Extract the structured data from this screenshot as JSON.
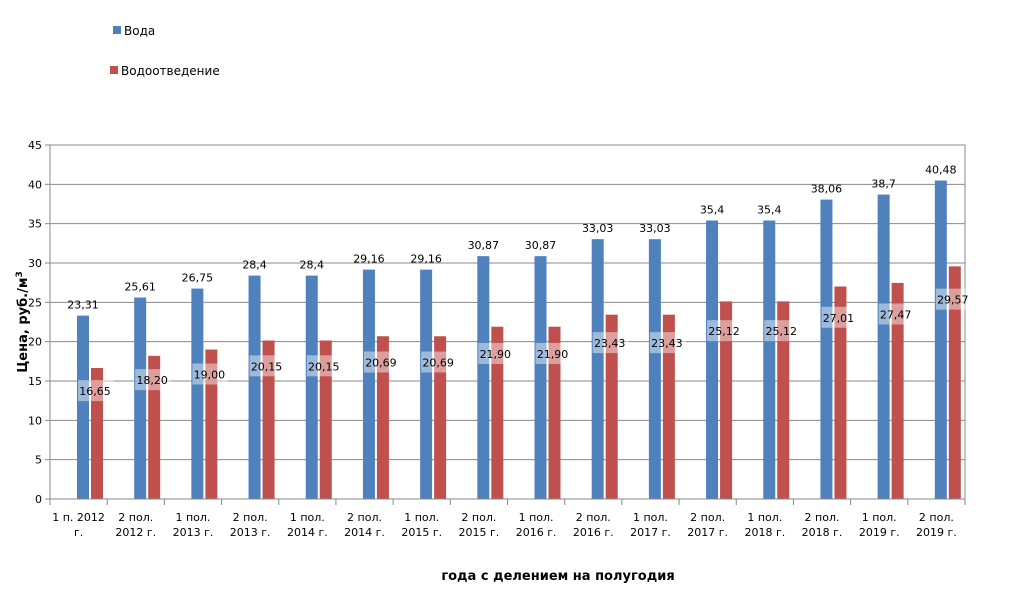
{
  "chart_data": {
    "type": "bar",
    "title": "",
    "xlabel": "года с делением на полугодия",
    "ylabel": "Цена, руб./м",
    "ylabel_superscript": "3",
    "ylim": [
      0,
      45
    ],
    "yticks": [
      0,
      5,
      10,
      15,
      20,
      25,
      30,
      35,
      40,
      45
    ],
    "grid": true,
    "legend_position": "top-left",
    "categories": [
      [
        "1 п. 2012",
        "г."
      ],
      [
        "2 пол.",
        "2012 г."
      ],
      [
        "1 пол.",
        "2013 г."
      ],
      [
        "2 пол.",
        "2013 г."
      ],
      [
        "1 пол.",
        "2014 г."
      ],
      [
        "2 пол.",
        "2014 г."
      ],
      [
        "1 пол.",
        "2015 г."
      ],
      [
        "2 пол.",
        "2015 г."
      ],
      [
        "1 пол.",
        "2016 г."
      ],
      [
        "2 пол.",
        "2016 г."
      ],
      [
        "1 пол.",
        "2017 г."
      ],
      [
        "2 пол.",
        "2017 г."
      ],
      [
        "1 пол.",
        "2018 г."
      ],
      [
        "2 пол.",
        "2018 г."
      ],
      [
        "1 пол.",
        "2019 г."
      ],
      [
        "2 пол.",
        "2019 г."
      ]
    ],
    "series": [
      {
        "name": "Вода",
        "color": "#4f81bd",
        "values": [
          23.31,
          25.61,
          26.75,
          28.4,
          28.4,
          29.16,
          29.16,
          30.87,
          30.87,
          33.03,
          33.03,
          35.4,
          35.4,
          38.06,
          38.7,
          40.48
        ],
        "labels": [
          "23,31",
          "25,61",
          "26,75",
          "28,4",
          "28,4",
          "29,16",
          "29,16",
          "30,87",
          "30,87",
          "33,03",
          "33,03",
          "35,4",
          "35,4",
          "38,06",
          "38,7",
          "40,48"
        ]
      },
      {
        "name": "Водоотведение",
        "color": "#c0504d",
        "values": [
          16.65,
          18.2,
          19.0,
          20.15,
          20.15,
          20.69,
          20.69,
          21.9,
          21.9,
          23.43,
          23.43,
          25.12,
          25.12,
          27.01,
          27.47,
          29.57
        ],
        "labels": [
          "16,65",
          "18,20",
          "19,00",
          "20,15",
          "20,15",
          "20,69",
          "20,69",
          "21,90",
          "21,90",
          "23,43",
          "23,43",
          "25,12",
          "25,12",
          "27,01",
          "27,47",
          "29,57"
        ]
      }
    ]
  }
}
